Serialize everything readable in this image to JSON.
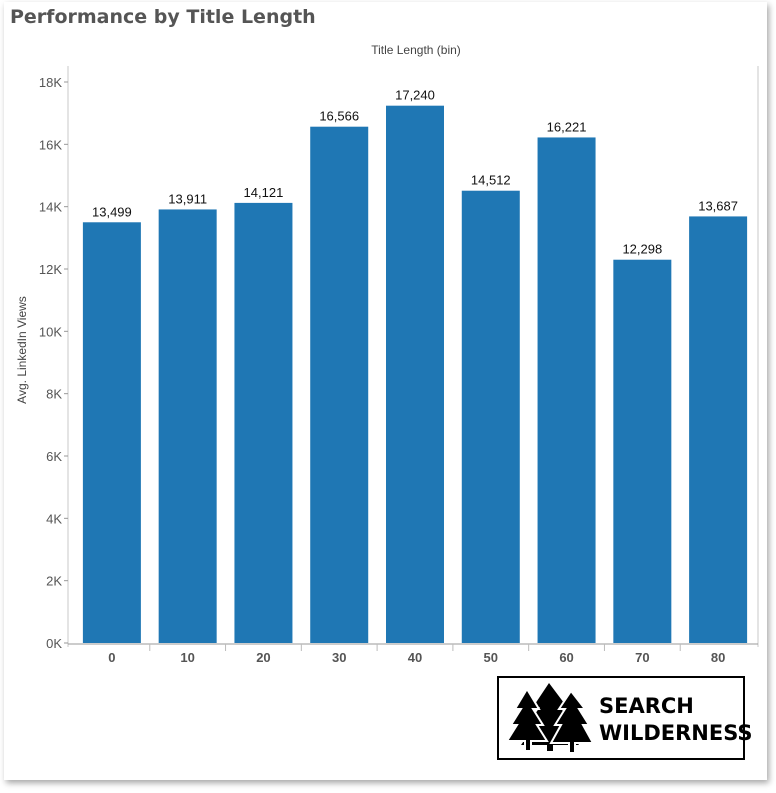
{
  "chart_data": {
    "type": "bar",
    "title": "Performance by Title Length",
    "xlabel": "Title Length (bin)",
    "ylabel": "Avg. LinkedIn Views",
    "categories": [
      "0",
      "10",
      "20",
      "30",
      "40",
      "50",
      "60",
      "70",
      "80"
    ],
    "values": [
      13499,
      13911,
      14121,
      16566,
      17240,
      14512,
      16221,
      12298,
      13687
    ],
    "data_labels": [
      "13,499",
      "13,911",
      "14,121",
      "16,566",
      "17,240",
      "14,512",
      "16,221",
      "12,298",
      "13,687"
    ],
    "ylim": [
      0,
      18000
    ],
    "yticks": [
      0,
      2000,
      4000,
      6000,
      8000,
      10000,
      12000,
      14000,
      16000,
      18000
    ],
    "ytick_labels": [
      "0K",
      "2K",
      "4K",
      "6K",
      "8K",
      "10K",
      "12K",
      "14K",
      "16K",
      "18K"
    ],
    "bar_color": "#1f77b4",
    "grid": false
  },
  "logo": {
    "line1": "SEARCH",
    "line2": "WILDERNESS",
    "icon": "pine-trees-icon"
  }
}
